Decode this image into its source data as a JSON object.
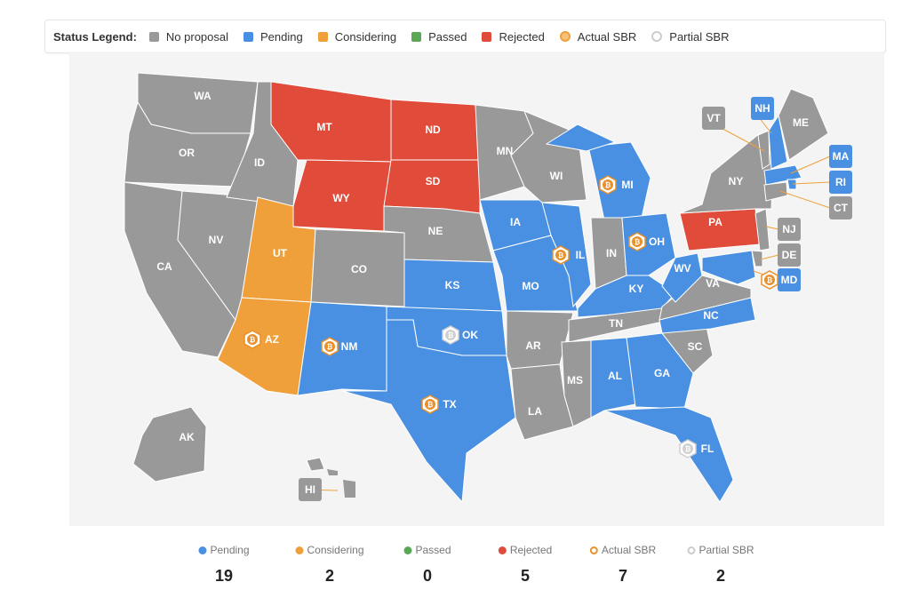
{
  "legend": {
    "title": "Status Legend:",
    "items": [
      {
        "label": "No proposal",
        "color": "#999999",
        "type": "square"
      },
      {
        "label": "Pending",
        "color": "#4a90e2",
        "type": "square"
      },
      {
        "label": "Considering",
        "color": "#f0a03a",
        "type": "square"
      },
      {
        "label": "Passed",
        "color": "#5aa755",
        "type": "square"
      },
      {
        "label": "Rejected",
        "color": "#e04b3a",
        "type": "square"
      },
      {
        "label": "Actual SBR",
        "color": "#f0a03a",
        "type": "coin"
      },
      {
        "label": "Partial SBR",
        "color": "#cccccc",
        "type": "coin"
      }
    ]
  },
  "colors": {
    "none": "#999999",
    "pending": "#4a90e2",
    "considering": "#f0a03a",
    "passed": "#5aa755",
    "rejected": "#e04b3a",
    "actual_sbr": "#e8902a",
    "partial_sbr": "#d0d0d0"
  },
  "states": [
    {
      "abbr": "WA",
      "status": "none"
    },
    {
      "abbr": "OR",
      "status": "none"
    },
    {
      "abbr": "CA",
      "status": "none"
    },
    {
      "abbr": "NV",
      "status": "none"
    },
    {
      "abbr": "ID",
      "status": "none"
    },
    {
      "abbr": "MT",
      "status": "rejected"
    },
    {
      "abbr": "WY",
      "status": "rejected"
    },
    {
      "abbr": "UT",
      "status": "considering"
    },
    {
      "abbr": "CO",
      "status": "none"
    },
    {
      "abbr": "AZ",
      "status": "considering",
      "sbr": "actual"
    },
    {
      "abbr": "NM",
      "status": "pending",
      "sbr": "actual"
    },
    {
      "abbr": "ND",
      "status": "rejected"
    },
    {
      "abbr": "SD",
      "status": "rejected"
    },
    {
      "abbr": "NE",
      "status": "none"
    },
    {
      "abbr": "KS",
      "status": "pending"
    },
    {
      "abbr": "OK",
      "status": "pending",
      "sbr": "partial"
    },
    {
      "abbr": "TX",
      "status": "pending",
      "sbr": "actual"
    },
    {
      "abbr": "MN",
      "status": "none"
    },
    {
      "abbr": "IA",
      "status": "pending"
    },
    {
      "abbr": "MO",
      "status": "pending"
    },
    {
      "abbr": "AR",
      "status": "none"
    },
    {
      "abbr": "LA",
      "status": "none"
    },
    {
      "abbr": "WI",
      "status": "none"
    },
    {
      "abbr": "IL",
      "status": "pending",
      "sbr": "actual"
    },
    {
      "abbr": "MI",
      "status": "pending",
      "sbr": "actual"
    },
    {
      "abbr": "IN",
      "status": "none"
    },
    {
      "abbr": "OH",
      "status": "pending",
      "sbr": "actual"
    },
    {
      "abbr": "KY",
      "status": "pending"
    },
    {
      "abbr": "TN",
      "status": "none"
    },
    {
      "abbr": "MS",
      "status": "none"
    },
    {
      "abbr": "AL",
      "status": "pending"
    },
    {
      "abbr": "GA",
      "status": "pending"
    },
    {
      "abbr": "FL",
      "status": "pending",
      "sbr": "partial"
    },
    {
      "abbr": "SC",
      "status": "none"
    },
    {
      "abbr": "NC",
      "status": "pending"
    },
    {
      "abbr": "VA",
      "status": "none"
    },
    {
      "abbr": "WV",
      "status": "pending"
    },
    {
      "abbr": "PA",
      "status": "rejected"
    },
    {
      "abbr": "NY",
      "status": "none"
    },
    {
      "abbr": "VT",
      "status": "none"
    },
    {
      "abbr": "NH",
      "status": "pending"
    },
    {
      "abbr": "ME",
      "status": "none"
    },
    {
      "abbr": "MA",
      "status": "pending"
    },
    {
      "abbr": "RI",
      "status": "pending"
    },
    {
      "abbr": "CT",
      "status": "none"
    },
    {
      "abbr": "NJ",
      "status": "none"
    },
    {
      "abbr": "DE",
      "status": "none"
    },
    {
      "abbr": "MD",
      "status": "pending",
      "sbr": "actual"
    },
    {
      "abbr": "AK",
      "status": "none"
    },
    {
      "abbr": "HI",
      "status": "none"
    }
  ],
  "stats": [
    {
      "label": "Pending",
      "value": "19",
      "color": "#4a90e2"
    },
    {
      "label": "Considering",
      "value": "2",
      "color": "#f0a03a"
    },
    {
      "label": "Passed",
      "value": "0",
      "color": "#5aa755"
    },
    {
      "label": "Rejected",
      "value": "5",
      "color": "#e04b3a"
    },
    {
      "label": "Actual SBR",
      "value": "7",
      "color": "#e8902a",
      "ring": true
    },
    {
      "label": "Partial SBR",
      "value": "2",
      "color": "#cccccc",
      "ring": true
    }
  ]
}
